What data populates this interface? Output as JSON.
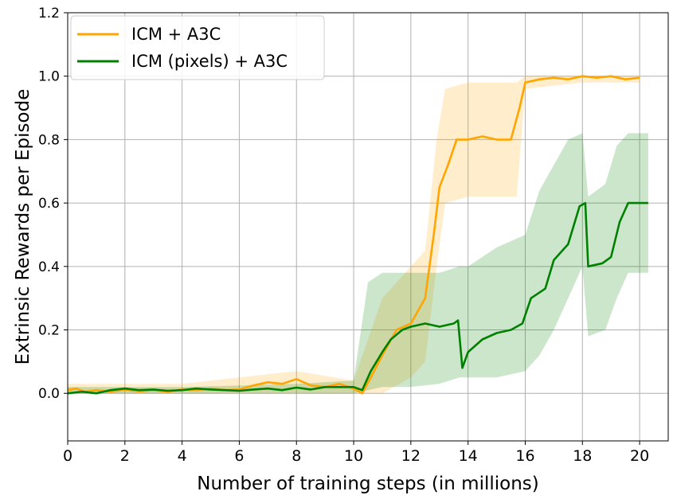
{
  "chart_data": {
    "type": "line",
    "xlabel": "Number of training steps (in millions)",
    "ylabel": "Extrinsic Rewards per Episode",
    "xlim": [
      0,
      21
    ],
    "ylim": [
      -0.15,
      1.2
    ],
    "x_ticks": [
      "0",
      "2",
      "4",
      "6",
      "8",
      "10",
      "12",
      "14",
      "16",
      "18",
      "20"
    ],
    "y_ticks": [
      "0.0",
      "0.2",
      "0.4",
      "0.6",
      "0.8",
      "1.0",
      "1.2"
    ],
    "grid": true,
    "legend_position": "top-left",
    "series": [
      {
        "name": "ICM + A3C",
        "color": "#ffa500",
        "points": [
          [
            0,
            0.01
          ],
          [
            0.3,
            0.015
          ],
          [
            0.6,
            0.005
          ],
          [
            1,
            0.01
          ],
          [
            1.5,
            0.005
          ],
          [
            2,
            0.012
          ],
          [
            2.5,
            0.006
          ],
          [
            3,
            0.01
          ],
          [
            3.5,
            0.005
          ],
          [
            4,
            0.012
          ],
          [
            4.5,
            0.01
          ],
          [
            5,
            0.015
          ],
          [
            5.5,
            0.01
          ],
          [
            6,
            0.012
          ],
          [
            6.5,
            0.025
          ],
          [
            7,
            0.035
          ],
          [
            7.5,
            0.03
          ],
          [
            8,
            0.045
          ],
          [
            8.5,
            0.025
          ],
          [
            9,
            0.02
          ],
          [
            9.5,
            0.03
          ],
          [
            10,
            0.015
          ],
          [
            10.3,
            0.0
          ],
          [
            10.6,
            0.05
          ],
          [
            11,
            0.12
          ],
          [
            11.5,
            0.2
          ],
          [
            12,
            0.22
          ],
          [
            12.5,
            0.3
          ],
          [
            12.8,
            0.5
          ],
          [
            13.0,
            0.65
          ],
          [
            13.3,
            0.72
          ],
          [
            13.6,
            0.8
          ],
          [
            14,
            0.8
          ],
          [
            14.5,
            0.81
          ],
          [
            15,
            0.8
          ],
          [
            15.5,
            0.8
          ],
          [
            15.8,
            0.9
          ],
          [
            16,
            0.98
          ],
          [
            16.5,
            0.99
          ],
          [
            17,
            0.995
          ],
          [
            17.5,
            0.99
          ],
          [
            18,
            1.0
          ],
          [
            18.5,
            0.995
          ],
          [
            19,
            1.0
          ],
          [
            19.5,
            0.99
          ],
          [
            20,
            0.995
          ]
        ],
        "band": [
          [
            0,
            0.0,
            0.03
          ],
          [
            2,
            0.0,
            0.03
          ],
          [
            4,
            0.0,
            0.03
          ],
          [
            6,
            0.0,
            0.05
          ],
          [
            8,
            0.0,
            0.07
          ],
          [
            10,
            0.0,
            0.04
          ],
          [
            11,
            0.0,
            0.3
          ],
          [
            12,
            0.05,
            0.4
          ],
          [
            12.5,
            0.1,
            0.45
          ],
          [
            12.9,
            0.4,
            0.8
          ],
          [
            13.2,
            0.6,
            0.96
          ],
          [
            14,
            0.62,
            0.98
          ],
          [
            15,
            0.62,
            0.98
          ],
          [
            15.7,
            0.62,
            0.98
          ],
          [
            16,
            0.96,
            1.0
          ],
          [
            18,
            0.98,
            1.0
          ],
          [
            20,
            0.98,
            1.0
          ]
        ]
      },
      {
        "name": "ICM (pixels) + A3C",
        "color": "#008000",
        "points": [
          [
            0,
            0.0
          ],
          [
            0.5,
            0.005
          ],
          [
            1,
            0.0
          ],
          [
            1.5,
            0.01
          ],
          [
            2,
            0.015
          ],
          [
            2.5,
            0.01
          ],
          [
            3,
            0.012
          ],
          [
            3.5,
            0.008
          ],
          [
            4,
            0.01
          ],
          [
            4.5,
            0.015
          ],
          [
            5,
            0.012
          ],
          [
            5.5,
            0.01
          ],
          [
            6,
            0.008
          ],
          [
            6.5,
            0.012
          ],
          [
            7,
            0.015
          ],
          [
            7.5,
            0.01
          ],
          [
            8,
            0.018
          ],
          [
            8.5,
            0.012
          ],
          [
            9,
            0.02
          ],
          [
            9.5,
            0.02
          ],
          [
            10,
            0.02
          ],
          [
            10.3,
            0.01
          ],
          [
            10.6,
            0.07
          ],
          [
            11,
            0.13
          ],
          [
            11.3,
            0.17
          ],
          [
            11.7,
            0.2
          ],
          [
            12,
            0.21
          ],
          [
            12.5,
            0.22
          ],
          [
            13,
            0.21
          ],
          [
            13.5,
            0.22
          ],
          [
            13.65,
            0.23
          ],
          [
            13.8,
            0.08
          ],
          [
            14,
            0.13
          ],
          [
            14.5,
            0.17
          ],
          [
            15,
            0.19
          ],
          [
            15.5,
            0.2
          ],
          [
            15.9,
            0.22
          ],
          [
            16.2,
            0.3
          ],
          [
            16.7,
            0.33
          ],
          [
            17,
            0.42
          ],
          [
            17.5,
            0.47
          ],
          [
            17.9,
            0.59
          ],
          [
            18.1,
            0.6
          ],
          [
            18.2,
            0.4
          ],
          [
            18.7,
            0.41
          ],
          [
            19,
            0.43
          ],
          [
            19.3,
            0.54
          ],
          [
            19.6,
            0.6
          ],
          [
            20,
            0.6
          ],
          [
            20.3,
            0.6
          ]
        ],
        "band": [
          [
            0,
            0.0,
            0.02
          ],
          [
            4,
            0.0,
            0.02
          ],
          [
            8,
            0.0,
            0.03
          ],
          [
            10,
            0.0,
            0.04
          ],
          [
            10.5,
            0.01,
            0.35
          ],
          [
            11,
            0.02,
            0.38
          ],
          [
            12,
            0.02,
            0.38
          ],
          [
            13,
            0.03,
            0.38
          ],
          [
            13.7,
            0.05,
            0.4
          ],
          [
            14,
            0.05,
            0.4
          ],
          [
            15,
            0.05,
            0.46
          ],
          [
            16,
            0.07,
            0.5
          ],
          [
            16.5,
            0.12,
            0.64
          ],
          [
            17,
            0.2,
            0.72
          ],
          [
            17.5,
            0.3,
            0.8
          ],
          [
            18,
            0.4,
            0.82
          ],
          [
            18.2,
            0.18,
            0.62
          ],
          [
            18.8,
            0.2,
            0.66
          ],
          [
            19.2,
            0.3,
            0.78
          ],
          [
            19.6,
            0.38,
            0.82
          ],
          [
            20.3,
            0.38,
            0.82
          ]
        ]
      }
    ]
  }
}
